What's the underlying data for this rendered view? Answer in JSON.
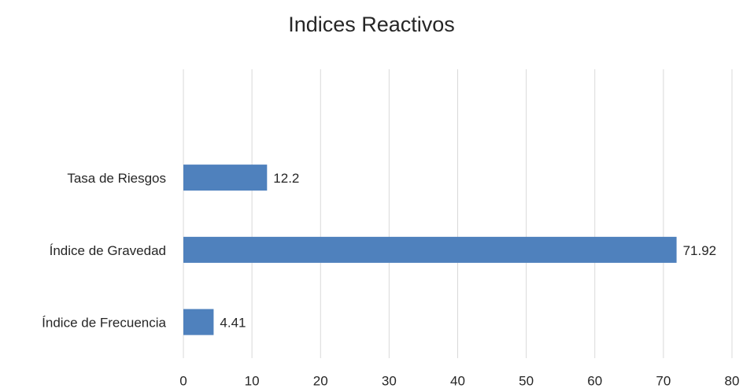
{
  "chart_data": {
    "type": "hbar",
    "title": "Indices Reactivos",
    "categories": [
      null,
      "Tasa de Riesgos",
      "Índice de Gravedad",
      "Índice de Frecuencia"
    ],
    "values": [
      null,
      12.2,
      71.92,
      4.41
    ],
    "color": "#4f81bd",
    "xlim": [
      0,
      80
    ],
    "xticks": [
      0,
      10,
      20,
      30,
      40,
      50,
      60,
      70,
      80
    ],
    "grid": true
  }
}
